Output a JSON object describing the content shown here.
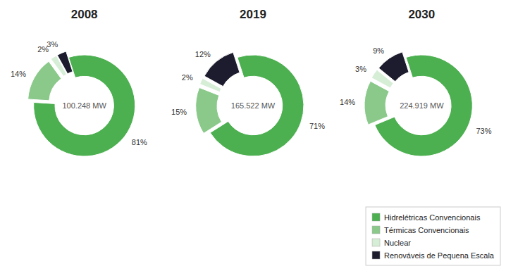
{
  "chart_data": [
    {
      "type": "pie",
      "title": "2008",
      "annotations": [
        "100.248 MW"
      ],
      "categories": [
        "Hidrelétricas Convencionais",
        "Térmicas Convencionais",
        "Nuclear",
        "Renováveis de Pequena Escala"
      ],
      "values": [
        81,
        14,
        2,
        3
      ],
      "value_labels": [
        "81%",
        "14%",
        "2%",
        "3%"
      ],
      "colors": [
        "#4caf50",
        "#8bc98b",
        "#d6edd6",
        "#1c1c2e"
      ],
      "data_labels": true
    },
    {
      "type": "pie",
      "title": "2019",
      "annotations": [
        "165.522 MW"
      ],
      "categories": [
        "Hidrelétricas Convencionais",
        "Térmicas Convencionais",
        "Nuclear",
        "Renováveis de Pequena Escala"
      ],
      "values": [
        71,
        15,
        2,
        12
      ],
      "value_labels": [
        "71%",
        "15%",
        "2%",
        "12%"
      ],
      "colors": [
        "#4caf50",
        "#8bc98b",
        "#d6edd6",
        "#1c1c2e"
      ],
      "data_labels": true
    },
    {
      "type": "pie",
      "title": "2030",
      "annotations": [
        "224.919 MW"
      ],
      "categories": [
        "Hidrelétricas Convencionais",
        "Térmicas Convencionais",
        "Nuclear",
        "Renováveis de Pequena Escala"
      ],
      "values": [
        73,
        14,
        3,
        9
      ],
      "value_labels": [
        "73%",
        "14%",
        "3%",
        "9%"
      ],
      "colors": [
        "#4caf50",
        "#8bc98b",
        "#d6edd6",
        "#1c1c2e"
      ],
      "data_labels": true,
      "legend": "lower right"
    }
  ]
}
